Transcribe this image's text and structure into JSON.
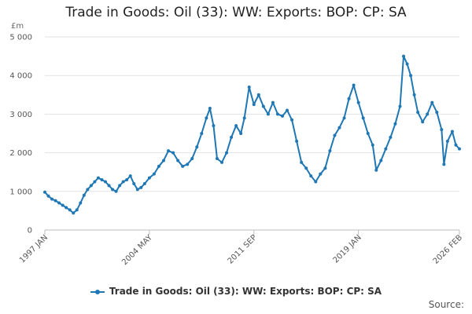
{
  "chart_data": {
    "type": "line",
    "title": "Trade in Goods: Oil (33): WW: Exports: BOP: CP: SA",
    "unit_label": "£m",
    "ylim": [
      0,
      5000
    ],
    "y_ticks": [
      0,
      1000,
      2000,
      3000,
      4000,
      5000
    ],
    "y_tick_labels": [
      "0",
      "1 000",
      "2 000",
      "3 000",
      "4 000",
      "5 000"
    ],
    "x_range": [
      "1997-01",
      "2026-02"
    ],
    "x_ticks": [
      "1997-01",
      "2004-05",
      "2011-09",
      "2019-01",
      "2026-02"
    ],
    "x_tick_labels": [
      "1997 JAN",
      "2004 MAY",
      "2011 SEP",
      "2019 JAN",
      "2026 FEB"
    ],
    "grid": true,
    "legend_position": "bottom",
    "series": [
      {
        "name": "Trade in Goods: Oil (33): WW: Exports: BOP: CP: SA",
        "color": "#1f77b4",
        "points": [
          [
            "1997-01",
            980
          ],
          [
            "1997-04",
            880
          ],
          [
            "1997-07",
            800
          ],
          [
            "1997-10",
            760
          ],
          [
            "1998-01",
            700
          ],
          [
            "1998-04",
            640
          ],
          [
            "1998-07",
            580
          ],
          [
            "1998-10",
            520
          ],
          [
            "1999-01",
            440
          ],
          [
            "1999-04",
            520
          ],
          [
            "1999-07",
            700
          ],
          [
            "1999-10",
            900
          ],
          [
            "2000-01",
            1050
          ],
          [
            "2000-04",
            1150
          ],
          [
            "2000-07",
            1250
          ],
          [
            "2000-10",
            1350
          ],
          [
            "2001-01",
            1300
          ],
          [
            "2001-04",
            1250
          ],
          [
            "2001-07",
            1150
          ],
          [
            "2001-10",
            1050
          ],
          [
            "2002-01",
            1000
          ],
          [
            "2002-04",
            1150
          ],
          [
            "2002-07",
            1250
          ],
          [
            "2002-10",
            1300
          ],
          [
            "2003-01",
            1400
          ],
          [
            "2003-04",
            1200
          ],
          [
            "2003-07",
            1050
          ],
          [
            "2003-10",
            1100
          ],
          [
            "2004-01",
            1200
          ],
          [
            "2004-05",
            1350
          ],
          [
            "2004-09",
            1450
          ],
          [
            "2005-01",
            1650
          ],
          [
            "2005-05",
            1800
          ],
          [
            "2005-09",
            2050
          ],
          [
            "2006-01",
            2000
          ],
          [
            "2006-05",
            1800
          ],
          [
            "2006-09",
            1650
          ],
          [
            "2007-01",
            1700
          ],
          [
            "2007-05",
            1850
          ],
          [
            "2007-09",
            2150
          ],
          [
            "2008-01",
            2500
          ],
          [
            "2008-05",
            2900
          ],
          [
            "2008-08",
            3150
          ],
          [
            "2008-11",
            2700
          ],
          [
            "2009-02",
            1850
          ],
          [
            "2009-06",
            1750
          ],
          [
            "2009-10",
            2000
          ],
          [
            "2010-02",
            2400
          ],
          [
            "2010-06",
            2700
          ],
          [
            "2010-10",
            2500
          ],
          [
            "2011-01",
            2900
          ],
          [
            "2011-05",
            3700
          ],
          [
            "2011-09",
            3250
          ],
          [
            "2012-01",
            3500
          ],
          [
            "2012-05",
            3200
          ],
          [
            "2012-09",
            3000
          ],
          [
            "2013-01",
            3300
          ],
          [
            "2013-05",
            3000
          ],
          [
            "2013-09",
            2950
          ],
          [
            "2014-01",
            3100
          ],
          [
            "2014-05",
            2850
          ],
          [
            "2014-09",
            2300
          ],
          [
            "2015-01",
            1750
          ],
          [
            "2015-05",
            1600
          ],
          [
            "2015-09",
            1400
          ],
          [
            "2016-01",
            1250
          ],
          [
            "2016-05",
            1450
          ],
          [
            "2016-09",
            1600
          ],
          [
            "2017-01",
            2050
          ],
          [
            "2017-05",
            2450
          ],
          [
            "2017-09",
            2650
          ],
          [
            "2018-01",
            2900
          ],
          [
            "2018-05",
            3400
          ],
          [
            "2018-09",
            3750
          ],
          [
            "2019-01",
            3300
          ],
          [
            "2019-05",
            2900
          ],
          [
            "2019-09",
            2500
          ],
          [
            "2020-01",
            2200
          ],
          [
            "2020-04",
            1550
          ],
          [
            "2020-08",
            1800
          ],
          [
            "2020-12",
            2100
          ],
          [
            "2021-04",
            2400
          ],
          [
            "2021-08",
            2750
          ],
          [
            "2021-12",
            3200
          ],
          [
            "2022-03",
            4500
          ],
          [
            "2022-06",
            4300
          ],
          [
            "2022-09",
            4000
          ],
          [
            "2022-12",
            3500
          ],
          [
            "2023-03",
            3050
          ],
          [
            "2023-07",
            2800
          ],
          [
            "2023-11",
            3000
          ],
          [
            "2024-03",
            3300
          ],
          [
            "2024-07",
            3050
          ],
          [
            "2024-11",
            2600
          ],
          [
            "2025-01",
            1700
          ],
          [
            "2025-04",
            2300
          ],
          [
            "2025-08",
            2550
          ],
          [
            "2025-11",
            2200
          ],
          [
            "2026-02",
            2100
          ]
        ]
      }
    ]
  },
  "legend_label": "Trade in Goods: Oil (33): WW: Exports: BOP: CP: SA",
  "source_label": "Source:"
}
